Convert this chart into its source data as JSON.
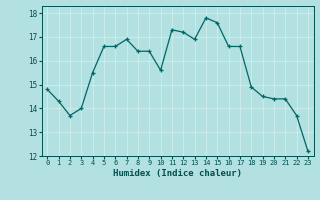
{
  "x": [
    0,
    1,
    2,
    3,
    4,
    5,
    6,
    7,
    8,
    9,
    10,
    11,
    12,
    13,
    14,
    15,
    16,
    17,
    18,
    19,
    20,
    21,
    22,
    23
  ],
  "y": [
    14.8,
    14.3,
    13.7,
    14.0,
    15.5,
    16.6,
    16.6,
    16.9,
    16.4,
    16.4,
    15.6,
    17.3,
    17.2,
    16.9,
    17.8,
    17.6,
    16.6,
    16.6,
    14.9,
    14.5,
    14.4,
    14.4,
    13.7,
    12.2
  ],
  "line_color": "#006666",
  "marker": "+",
  "bg_color": "#b3e0e0",
  "grid_color": "#d0ecec",
  "xlabel": "Humidex (Indice chaleur)",
  "xlabel_color": "#005050",
  "tick_color": "#005050",
  "ylim": [
    12,
    18.3
  ],
  "xlim": [
    -0.5,
    23.5
  ],
  "yticks": [
    12,
    13,
    14,
    15,
    16,
    17,
    18
  ],
  "xticks": [
    0,
    1,
    2,
    3,
    4,
    5,
    6,
    7,
    8,
    9,
    10,
    11,
    12,
    13,
    14,
    15,
    16,
    17,
    18,
    19,
    20,
    21,
    22,
    23
  ],
  "figsize": [
    3.2,
    2.0
  ],
  "dpi": 100
}
